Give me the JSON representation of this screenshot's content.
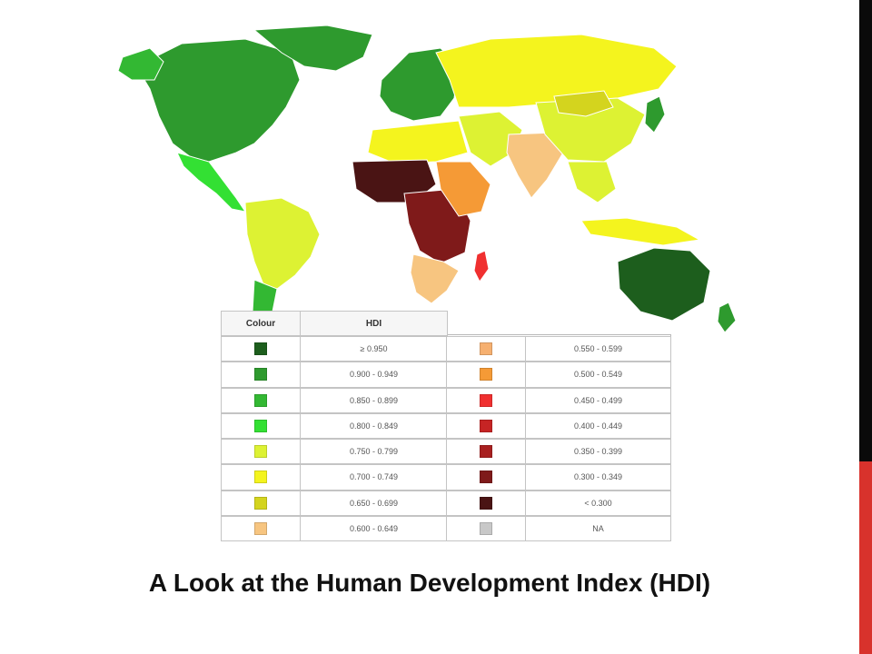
{
  "slide": {
    "title": "A Look at the Human Development Index (HDI)"
  },
  "colors": {
    "right_bar_top": "#0a0a0a",
    "right_bar_bottom": "#d8322c",
    "ocean": "#ffffff"
  },
  "legend": {
    "col_colour": "Colour",
    "col_hdi": "HDI",
    "left_column": [
      {
        "range": "≥ 0.950",
        "color": "#1d5e1d"
      },
      {
        "range": "0.900 - 0.949",
        "color": "#2e9a2e"
      },
      {
        "range": "0.850 - 0.899",
        "color": "#33b833"
      },
      {
        "range": "0.800 - 0.849",
        "color": "#33e033"
      },
      {
        "range": "0.750 - 0.799",
        "color": "#ddf233"
      },
      {
        "range": "0.700 - 0.749",
        "color": "#f4f41e"
      },
      {
        "range": "0.650 - 0.699",
        "color": "#d4d41e"
      },
      {
        "range": "0.600 - 0.649",
        "color": "#f7c580"
      }
    ],
    "right_column": [
      {
        "range": "0.550 - 0.599",
        "color": "#f6b070"
      },
      {
        "range": "0.500 - 0.549",
        "color": "#f59a36"
      },
      {
        "range": "0.450 - 0.499",
        "color": "#f03030"
      },
      {
        "range": "0.400 - 0.449",
        "color": "#c62424"
      },
      {
        "range": "0.350 - 0.399",
        "color": "#a82020"
      },
      {
        "range": "0.300 - 0.349",
        "color": "#7f1a1a"
      },
      {
        "range": "< 0.300",
        "color": "#4a1414"
      },
      {
        "range": "NA",
        "color": "#c8c8c8"
      }
    ]
  },
  "map": {
    "regions": [
      {
        "name": "north-america",
        "color": "#2e9a2e"
      },
      {
        "name": "greenland",
        "color": "#2e9a2e"
      },
      {
        "name": "alaska",
        "color": "#33b833"
      },
      {
        "name": "mexico-central-america",
        "color": "#33e033"
      },
      {
        "name": "south-america",
        "color": "#ddf233"
      },
      {
        "name": "southern-cone",
        "color": "#33b833"
      },
      {
        "name": "europe",
        "color": "#2e9a2e"
      },
      {
        "name": "russia",
        "color": "#f4f41e"
      },
      {
        "name": "middle-east",
        "color": "#ddf233"
      },
      {
        "name": "north-africa",
        "color": "#f4f41e"
      },
      {
        "name": "sahel",
        "color": "#4a1414"
      },
      {
        "name": "central-africa",
        "color": "#7f1a1a"
      },
      {
        "name": "east-africa",
        "color": "#f59a36"
      },
      {
        "name": "southern-africa",
        "color": "#f7c580"
      },
      {
        "name": "india",
        "color": "#f7c580"
      },
      {
        "name": "china",
        "color": "#ddf233"
      },
      {
        "name": "mongolia",
        "color": "#d4d41e"
      },
      {
        "name": "japan",
        "color": "#2e9a2e"
      },
      {
        "name": "southeast-asia",
        "color": "#ddf233"
      },
      {
        "name": "indonesia",
        "color": "#f4f41e"
      },
      {
        "name": "australia",
        "color": "#1d5e1d"
      },
      {
        "name": "new-zealand",
        "color": "#2e9a2e"
      },
      {
        "name": "madagascar",
        "color": "#f03030"
      }
    ]
  }
}
